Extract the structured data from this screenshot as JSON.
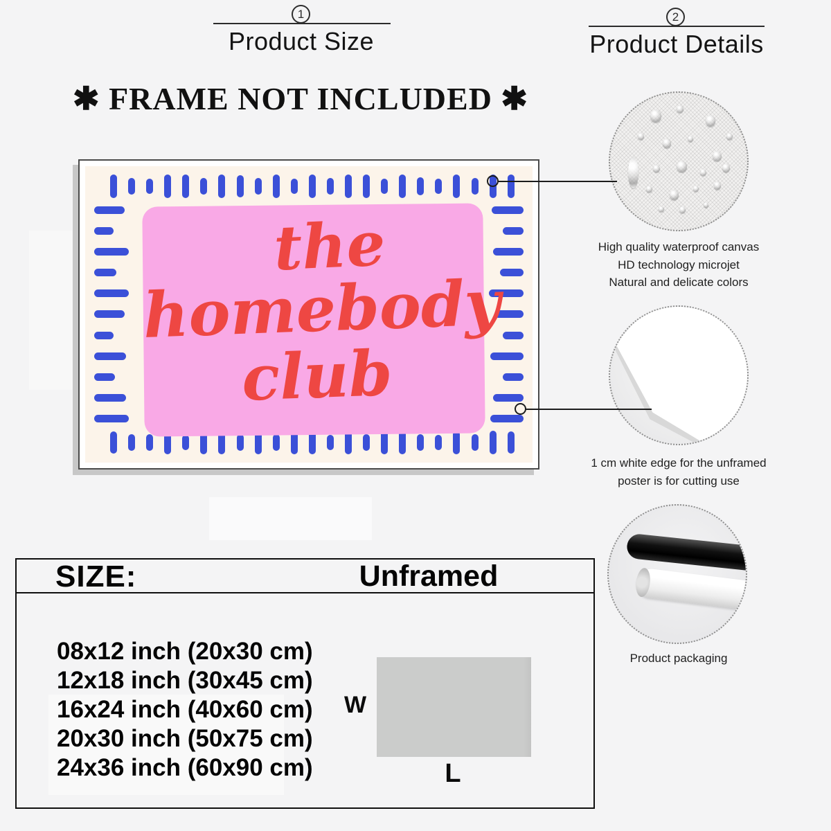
{
  "sections": [
    {
      "number": "1",
      "title": "Product Size"
    },
    {
      "number": "2",
      "title": "Product Details"
    }
  ],
  "notice": "✱ FRAME NOT INCLUDED ✱",
  "poster": {
    "line1": "the",
    "line2": "homebody",
    "line3": "club",
    "colors": {
      "background": "#fcf4ea",
      "panel_pink": "#f9a9e6",
      "script_red": "#ee4743",
      "dash_blue": "#3b50d8"
    }
  },
  "details": [
    {
      "icon": "canvas-droplets-photo",
      "lines": [
        "High quality waterproof canvas",
        "HD technology microjet",
        "Natural and delicate colors"
      ]
    },
    {
      "icon": "paper-corner-photo",
      "lines": [
        "1 cm white edge for the unframed",
        "poster is for cutting use"
      ]
    },
    {
      "icon": "rolled-tubes-photo",
      "lines": [
        "Product packaging"
      ]
    }
  ],
  "size_table": {
    "header_left": "SIZE:",
    "header_right": "Unframed",
    "rows": [
      "08x12 inch (20x30 cm)",
      "12x18 inch (30x45 cm)",
      "16x24 inch (40x60 cm)",
      "20x30 inch (50x75 cm)",
      "24x36 inch (60x90 cm)"
    ]
  },
  "diagram": {
    "width_label": "W",
    "length_label": "L"
  }
}
